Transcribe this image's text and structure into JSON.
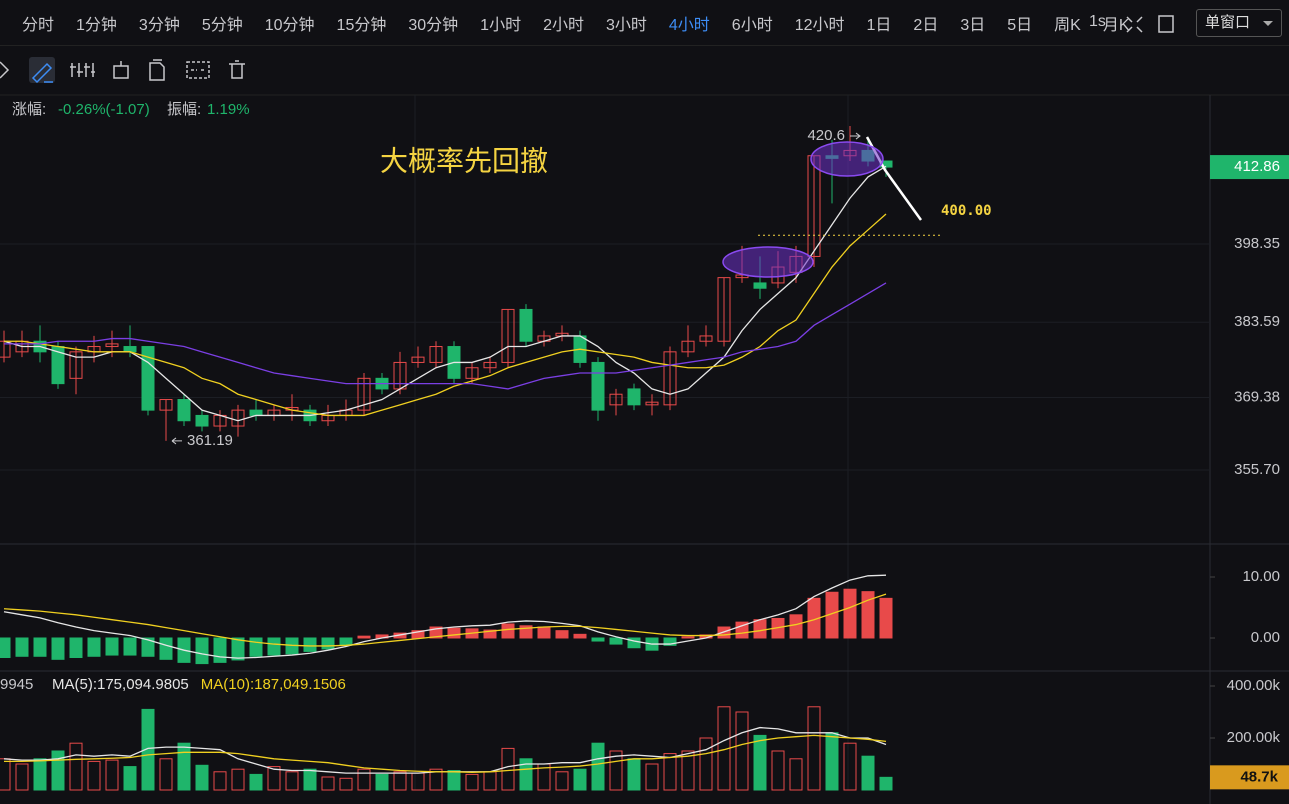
{
  "toolbar": {
    "intervals": [
      "分时",
      "1分钟",
      "3分钟",
      "5分钟",
      "10分钟",
      "15分钟",
      "30分钟",
      "1小时",
      "2小时",
      "3小时",
      "4小时",
      "6小时",
      "12小时",
      "1日",
      "2日",
      "3日",
      "5日",
      "周K",
      "月K"
    ],
    "active": "4小时",
    "clock": "1s",
    "window_select": "单窗口"
  },
  "info": {
    "rise_label": "涨幅:",
    "rise": "-0.26%(-1.07)",
    "amp_label": "振幅:",
    "amp": "1.19%"
  },
  "chart_data": [
    {
      "type": "candlestick",
      "annotation": "大概率先回撤",
      "up_color": "#e84a4a",
      "down_color": "#1fb56b",
      "ylim": [
        341.93,
        426.46
      ],
      "yticks": [
        398.35,
        383.59,
        369.38,
        {
          "value": 355.7,
          "label": "355.70"
        }
      ],
      "grid": true,
      "ohlc": [
        [
          377,
          382,
          376,
          380
        ],
        [
          378,
          382,
          377,
          380
        ],
        [
          380,
          383,
          376,
          378
        ],
        [
          379,
          380,
          371,
          372
        ],
        [
          373,
          379,
          370,
          378
        ],
        [
          378,
          381,
          376,
          379
        ],
        [
          379,
          382,
          377,
          379.5
        ],
        [
          379,
          383,
          377,
          378
        ],
        [
          379,
          379,
          366,
          367
        ],
        [
          367,
          369,
          361.19,
          369
        ],
        [
          369,
          370,
          364,
          365
        ],
        [
          366,
          367,
          363,
          364
        ],
        [
          364,
          367,
          363,
          366
        ],
        [
          364,
          368,
          362,
          367
        ],
        [
          367,
          369,
          365,
          366
        ],
        [
          366,
          368,
          365,
          367
        ],
        [
          367,
          370,
          365,
          367.5
        ],
        [
          367,
          368,
          364,
          365
        ],
        [
          365,
          368,
          364,
          366
        ],
        [
          366,
          369,
          365,
          367
        ],
        [
          367,
          374,
          366,
          373
        ],
        [
          373,
          374,
          370,
          371
        ],
        [
          371,
          378,
          370,
          376
        ],
        [
          376,
          379,
          375,
          377
        ],
        [
          376,
          380,
          375,
          379
        ],
        [
          379,
          380,
          372,
          373
        ],
        [
          373,
          376,
          372,
          375
        ],
        [
          375,
          377,
          374,
          376
        ],
        [
          376,
          386,
          375,
          386
        ],
        [
          386,
          387,
          379,
          380
        ],
        [
          380,
          382,
          379,
          381
        ],
        [
          381,
          383,
          380,
          381.5
        ],
        [
          381,
          382,
          375,
          376
        ],
        [
          376,
          377,
          365,
          367
        ],
        [
          368,
          371,
          366,
          370
        ],
        [
          371,
          372,
          367,
          368
        ],
        [
          368,
          370,
          366,
          368.5
        ],
        [
          368,
          379,
          367,
          378
        ],
        [
          378,
          383,
          377,
          380
        ],
        [
          380,
          383,
          379,
          381
        ],
        [
          380,
          392,
          379,
          392
        ],
        [
          392,
          398,
          391,
          392.5
        ],
        [
          391,
          396,
          388,
          390
        ],
        [
          391,
          397,
          390,
          394
        ],
        [
          393,
          398,
          391,
          396
        ],
        [
          396,
          415,
          394,
          415
        ],
        [
          415,
          418,
          406,
          414.5
        ],
        [
          415,
          420.6,
          414,
          416
        ],
        [
          416,
          418,
          413,
          414
        ],
        [
          414,
          414,
          411,
          412.86
        ]
      ],
      "lines": [
        {
          "color": "#e6e6e6",
          "values": [
            380,
            379,
            379,
            378,
            377,
            377,
            378,
            378,
            376,
            373,
            370,
            367,
            366,
            365,
            366,
            366,
            366,
            366,
            366.5,
            367,
            368,
            369,
            371,
            373,
            375,
            376,
            376,
            377,
            379,
            379,
            380,
            381,
            381,
            379,
            376,
            374,
            371,
            370,
            371,
            374,
            377,
            382,
            386,
            389,
            392,
            397,
            402,
            407,
            411,
            413
          ]
        },
        {
          "color": "#f0d020",
          "values": [
            380,
            380,
            379.5,
            379,
            378.5,
            378,
            378,
            378,
            377,
            376,
            375,
            373,
            372,
            370,
            369,
            368,
            367,
            366.5,
            366,
            366,
            366,
            367,
            368,
            369,
            370,
            371.5,
            372.5,
            373.5,
            375,
            376,
            377,
            378,
            378.5,
            378,
            377.5,
            377,
            376,
            375.5,
            375,
            375,
            375.5,
            377,
            379,
            382,
            384,
            389,
            394,
            398,
            401,
            404
          ]
        },
        {
          "color": "#7b3fe4",
          "values": [
            379.5,
            379.5,
            379.5,
            380,
            380,
            380,
            380.5,
            380.5,
            380,
            379.5,
            379,
            378,
            377,
            376,
            375,
            374,
            373.5,
            373,
            372.5,
            372,
            372,
            372,
            372,
            372,
            372,
            372,
            372,
            371.5,
            371,
            372,
            373,
            373.5,
            374,
            374,
            374,
            374.5,
            375,
            375.5,
            376,
            376.5,
            377,
            378,
            378.5,
            379,
            380,
            383,
            385,
            387,
            389,
            391
          ]
        }
      ],
      "high_mark": {
        "value": 420.6,
        "label": "420.6"
      },
      "low_mark": {
        "value": 361.19,
        "label": "361.19"
      },
      "level": {
        "value": 400,
        "label": "400.00",
        "color": "#f5d442"
      },
      "last": 412.86,
      "last_color": "#1fb56b"
    },
    {
      "type": "bar",
      "up_color": "#e84a4a",
      "down_color": "#1fb56b",
      "ylim": [
        -5.25,
        15.25
      ],
      "yticks": [
        {
          "value": 10,
          "label": "10.00"
        },
        {
          "value": 0,
          "label": "0.00"
        }
      ],
      "values": [
        -3.2,
        -3.0,
        -3.0,
        -3.5,
        -3.2,
        -3.0,
        -2.8,
        -2.8,
        -3.0,
        -3.5,
        -4.0,
        -4.2,
        -4.0,
        -3.6,
        -3.0,
        -2.8,
        -2.6,
        -2.2,
        -1.8,
        -1.2,
        0.3,
        0.5,
        0.8,
        1.2,
        1.8,
        1.6,
        1.5,
        1.3,
        2.3,
        2.0,
        1.8,
        1.2,
        0.6,
        -0.5,
        -1.0,
        -1.6,
        -2.0,
        -1.2,
        0.2,
        0.5,
        1.8,
        2.6,
        3.0,
        3.2,
        3.8,
        6.5,
        7.5,
        8.0,
        7.6,
        6.5
      ],
      "lines": [
        {
          "color": "#e6e6e6",
          "values": [
            4.3,
            3.8,
            3.3,
            2.5,
            1.8,
            1.2,
            0.8,
            0.4,
            -0.3,
            -1.2,
            -2.0,
            -2.6,
            -3.1,
            -3.3,
            -3.2,
            -3.0,
            -2.8,
            -2.5,
            -2.0,
            -1.4,
            -0.6,
            0.0,
            0.5,
            1.0,
            1.5,
            1.8,
            2.0,
            2.1,
            2.6,
            2.8,
            2.7,
            2.4,
            2.0,
            1.0,
            0.2,
            -0.5,
            -1.0,
            -1.0,
            -0.5,
            0.0,
            1.0,
            2.0,
            3.0,
            3.8,
            4.8,
            6.8,
            8.2,
            9.5,
            10.2,
            10.3
          ]
        },
        {
          "color": "#f0d020",
          "values": [
            4.8,
            4.6,
            4.4,
            4.1,
            3.8,
            3.4,
            3.0,
            2.6,
            2.2,
            1.7,
            1.2,
            0.7,
            0.2,
            -0.3,
            -0.7,
            -1.0,
            -1.2,
            -1.3,
            -1.3,
            -1.2,
            -1.0,
            -0.7,
            -0.4,
            -0.1,
            0.2,
            0.5,
            0.8,
            1.1,
            1.4,
            1.6,
            1.8,
            1.9,
            1.9,
            1.7,
            1.4,
            1.1,
            0.8,
            0.5,
            0.4,
            0.4,
            0.5,
            0.8,
            1.2,
            1.7,
            2.2,
            3.0,
            4.0,
            5.0,
            6.2,
            7.2
          ]
        }
      ]
    },
    {
      "type": "bar",
      "legend_prefix": "9945",
      "ylim": [
        0,
        453800
      ],
      "yticks": [
        {
          "value": 400000,
          "label": "400.00k"
        },
        {
          "value": 200000,
          "label": "200.00k"
        }
      ],
      "values": [
        120000,
        100000,
        120000,
        150000,
        180000,
        110000,
        115000,
        90000,
        310000,
        120000,
        180000,
        95000,
        70000,
        80000,
        60000,
        90000,
        70000,
        80000,
        50000,
        45000,
        80000,
        60000,
        70000,
        65000,
        80000,
        75000,
        60000,
        70000,
        160000,
        120000,
        100000,
        70000,
        80000,
        180000,
        150000,
        120000,
        100000,
        140000,
        150000,
        200000,
        320000,
        300000,
        210000,
        150000,
        120000,
        320000,
        220000,
        180000,
        130000,
        48700
      ],
      "last_label": {
        "value": 48700,
        "label": "48.7k",
        "color": "#d99a1e"
      },
      "lines": [
        {
          "name": "MA(5):175,094.9805",
          "color": "#e6e6e6",
          "values": [
            120000,
            115000,
            115000,
            120000,
            135000,
            130000,
            135000,
            130000,
            160000,
            165000,
            165000,
            160000,
            155000,
            120000,
            100000,
            80000,
            75000,
            75000,
            70000,
            65000,
            65000,
            65000,
            65000,
            65000,
            70000,
            70000,
            70000,
            70000,
            90000,
            100000,
            100000,
            105000,
            105000,
            120000,
            130000,
            135000,
            130000,
            125000,
            140000,
            155000,
            190000,
            220000,
            240000,
            235000,
            220000,
            220000,
            220000,
            200000,
            200000,
            175000
          ]
        },
        {
          "name": "MA(10):187,049.1506",
          "color": "#f0d020",
          "values": [
            110000,
            110000,
            112000,
            115000,
            118000,
            120000,
            122000,
            125000,
            135000,
            140000,
            145000,
            145000,
            145000,
            140000,
            130000,
            120000,
            115000,
            110000,
            105000,
            95000,
            85000,
            80000,
            75000,
            72000,
            70000,
            70000,
            68000,
            70000,
            75000,
            80000,
            85000,
            88000,
            92000,
            100000,
            110000,
            120000,
            120000,
            125000,
            130000,
            140000,
            155000,
            175000,
            190000,
            200000,
            205000,
            210000,
            205000,
            200000,
            195000,
            187000
          ]
        }
      ]
    }
  ]
}
